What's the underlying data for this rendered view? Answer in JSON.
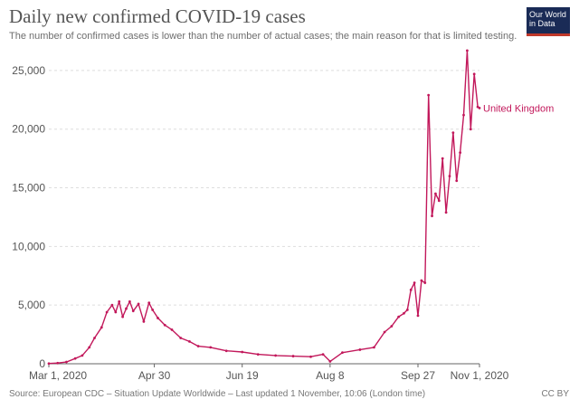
{
  "header": {
    "title": "Daily new confirmed COVID-19 cases",
    "subtitle": "The number of confirmed cases is lower than the number of actual cases; the main reason for that is limited testing.",
    "logo_line1": "Our World",
    "logo_line2": "in Data"
  },
  "footer": {
    "source": "Source: European CDC – Situation Update Worldwide – Last updated 1 November, 10:06 (London time)",
    "license": "CC BY"
  },
  "colors": {
    "series": "#c2185b",
    "grid": "#dddddd",
    "axis": "#666666",
    "text": "#555555"
  },
  "chart_data": {
    "type": "line",
    "title": "Daily new confirmed COVID-19 cases",
    "xlabel": "",
    "ylabel": "",
    "x_ticks": [
      "Mar 1, 2020",
      "Apr 30",
      "Jun 19",
      "Aug 8",
      "Sep 27",
      "Nov 1, 2020"
    ],
    "y_ticks": [
      "0",
      "5,000",
      "10,000",
      "15,000",
      "20,000",
      "25,000"
    ],
    "y_tick_values": [
      0,
      5000,
      10000,
      15000,
      20000,
      25000
    ],
    "ylim": [
      0,
      27000
    ],
    "x_range": [
      "2020-03-01",
      "2020-11-01"
    ],
    "grid": true,
    "series": [
      {
        "name": "United Kingdom",
        "x": [
          "2020-03-01",
          "2020-03-06",
          "2020-03-11",
          "2020-03-16",
          "2020-03-20",
          "2020-03-24",
          "2020-03-27",
          "2020-03-31",
          "2020-04-03",
          "2020-04-06",
          "2020-04-08",
          "2020-04-10",
          "2020-04-12",
          "2020-04-14",
          "2020-04-16",
          "2020-04-18",
          "2020-04-21",
          "2020-04-24",
          "2020-04-27",
          "2020-04-29",
          "2020-05-02",
          "2020-05-06",
          "2020-05-10",
          "2020-05-15",
          "2020-05-20",
          "2020-05-25",
          "2020-06-01",
          "2020-06-10",
          "2020-06-19",
          "2020-06-28",
          "2020-07-08",
          "2020-07-18",
          "2020-07-28",
          "2020-08-04",
          "2020-08-08",
          "2020-08-15",
          "2020-08-25",
          "2020-09-02",
          "2020-09-08",
          "2020-09-12",
          "2020-09-16",
          "2020-09-19",
          "2020-09-21",
          "2020-09-23",
          "2020-09-25",
          "2020-09-27",
          "2020-09-29",
          "2020-10-01",
          "2020-10-03",
          "2020-10-05",
          "2020-10-07",
          "2020-10-09",
          "2020-10-11",
          "2020-10-13",
          "2020-10-15",
          "2020-10-17",
          "2020-10-19",
          "2020-10-21",
          "2020-10-23",
          "2020-10-25",
          "2020-10-27",
          "2020-10-29",
          "2020-10-31",
          "2020-11-01"
        ],
        "y": [
          20,
          60,
          150,
          450,
          700,
          1400,
          2200,
          3100,
          4400,
          5000,
          4400,
          5300,
          4000,
          4700,
          5300,
          4500,
          5100,
          3600,
          5200,
          4600,
          3900,
          3300,
          2900,
          2200,
          1900,
          1500,
          1400,
          1100,
          1000,
          800,
          700,
          650,
          600,
          800,
          200,
          950,
          1200,
          1400,
          2700,
          3200,
          4000,
          4300,
          4600,
          6300,
          6900,
          4100,
          7100,
          6900,
          22900,
          12600,
          14500,
          13900,
          17500,
          12900,
          16000,
          19700,
          15600,
          18000,
          21200,
          26700,
          20000,
          24700,
          21900,
          21800
        ]
      }
    ]
  }
}
